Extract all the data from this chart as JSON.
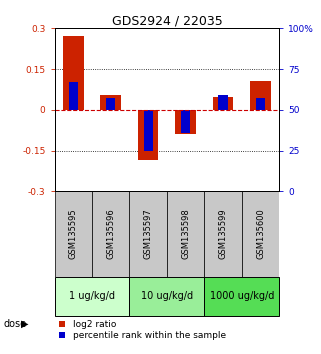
{
  "title": "GDS2924 / 22035",
  "samples": [
    "GSM135595",
    "GSM135596",
    "GSM135597",
    "GSM135598",
    "GSM135599",
    "GSM135600"
  ],
  "log2_ratio": [
    0.27,
    0.055,
    -0.185,
    -0.09,
    0.048,
    0.105
  ],
  "percentile_rank": [
    67,
    57,
    25,
    36,
    59,
    57
  ],
  "ylim": [
    -0.3,
    0.3
  ],
  "yticks_left": [
    -0.3,
    -0.15,
    0,
    0.15,
    0.3
  ],
  "yticks_right": [
    0,
    25,
    50,
    75,
    100
  ],
  "dose_groups": [
    {
      "label": "1 ug/kg/d",
      "count": 2,
      "color": "#ccffcc"
    },
    {
      "label": "10 ug/kg/d",
      "count": 2,
      "color": "#99ee99"
    },
    {
      "label": "1000 ug/kg/d",
      "count": 2,
      "color": "#55dd55"
    }
  ],
  "red_color": "#cc2200",
  "blue_color": "#0000cc",
  "sample_bg_color": "#c8c8c8",
  "hline_color": "#cc0000",
  "grid_color": "#000000",
  "title_fontsize": 9,
  "tick_fontsize": 6.5,
  "legend_fontsize": 6.5,
  "dose_fontsize": 7,
  "sample_fontsize": 6
}
